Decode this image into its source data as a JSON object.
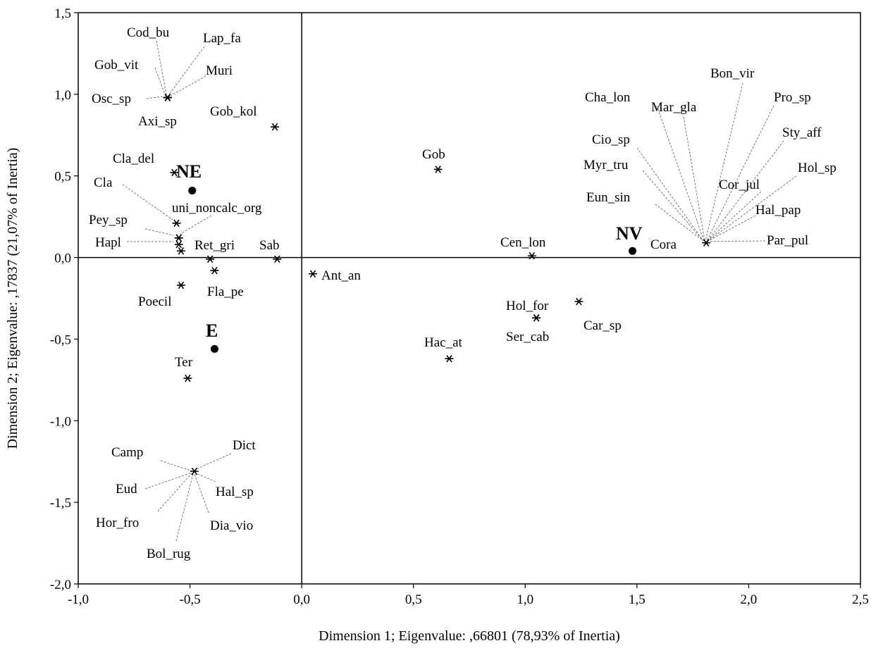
{
  "chart_data": {
    "type": "scatter",
    "title": "",
    "xlabel": "Dimension 1; Eigenvalue: ,66801 (78,93% of Inertia)",
    "ylabel": "Dimension 2; Eigenvalue: ,17837 (21,07% of Inertia)",
    "xlim": [
      -1.0,
      2.5
    ],
    "ylim": [
      -2.0,
      1.5
    ],
    "grid": false,
    "x_ticks": [
      {
        "v": -1.0,
        "label": "-1,0"
      },
      {
        "v": -0.5,
        "label": "-0,5"
      },
      {
        "v": 0.0,
        "label": "0,0"
      },
      {
        "v": 0.5,
        "label": "0,5"
      },
      {
        "v": 1.0,
        "label": "1,0"
      },
      {
        "v": 1.5,
        "label": "1,5"
      },
      {
        "v": 2.0,
        "label": "2,0"
      },
      {
        "v": 2.5,
        "label": "2,5"
      }
    ],
    "y_ticks": [
      {
        "v": 1.5,
        "label": "1,5"
      },
      {
        "v": 1.0,
        "label": "1,0"
      },
      {
        "v": 0.5,
        "label": "0,5"
      },
      {
        "v": 0.0,
        "label": "0,0"
      },
      {
        "v": -0.5,
        "label": "-0,5"
      },
      {
        "v": -1.0,
        "label": "-1,0"
      },
      {
        "v": -1.5,
        "label": "-1,5"
      },
      {
        "v": -2.0,
        "label": "-2,0"
      }
    ],
    "groups": [
      {
        "name": "NE",
        "x": -0.49,
        "y": 0.41
      },
      {
        "name": "NV",
        "x": 1.48,
        "y": 0.04
      },
      {
        "name": "E",
        "x": -0.39,
        "y": -0.56
      }
    ],
    "points": [
      {
        "name": "Cod_bu",
        "x": -0.6,
        "y": 0.98
      },
      {
        "name": "Lap_fa",
        "x": -0.6,
        "y": 0.98
      },
      {
        "name": "Gob_vit",
        "x": -0.6,
        "y": 0.98
      },
      {
        "name": "Muri",
        "x": -0.6,
        "y": 0.98
      },
      {
        "name": "Osc_sp",
        "x": -0.6,
        "y": 0.98
      },
      {
        "name": "Axi_sp",
        "x": -0.6,
        "y": 0.98
      },
      {
        "name": "Gob_kol",
        "x": -0.12,
        "y": 0.8
      },
      {
        "name": "Cla_del",
        "x": -0.57,
        "y": 0.52
      },
      {
        "name": "Cla",
        "x": -0.56,
        "y": 0.21
      },
      {
        "name": "uni_noncalc_org",
        "x": -0.55,
        "y": 0.12
      },
      {
        "name": "Pey_sp",
        "x": -0.55,
        "y": 0.12
      },
      {
        "name": "Hapl",
        "x": -0.55,
        "y": 0.08
      },
      {
        "name": "Ret_gri",
        "x": -0.54,
        "y": 0.04
      },
      {
        "name": "Sab",
        "x": -0.11,
        "y": -0.01
      },
      {
        "name": "Fla_pe",
        "x": -0.41,
        "y": -0.01
      },
      {
        "name": "Fla_pe_2",
        "x": -0.39,
        "y": -0.08
      },
      {
        "name": "Poecil",
        "x": -0.54,
        "y": -0.17
      },
      {
        "name": "Ter",
        "x": -0.51,
        "y": -0.74
      },
      {
        "name": "Ant_an",
        "x": 0.05,
        "y": -0.1
      },
      {
        "name": "Gob",
        "x": 0.61,
        "y": 0.54
      },
      {
        "name": "Cen_lon",
        "x": 1.03,
        "y": 0.01
      },
      {
        "name": "Hol_for",
        "x": 1.05,
        "y": -0.37
      },
      {
        "name": "Ser_cab",
        "x": 1.05,
        "y": -0.37
      },
      {
        "name": "Car_sp",
        "x": 1.24,
        "y": -0.27
      },
      {
        "name": "Hac_at",
        "x": 0.66,
        "y": -0.62
      },
      {
        "name": "Cora",
        "x": 1.81,
        "y": 0.09
      },
      {
        "name": "Dict",
        "x": -0.48,
        "y": -1.31
      }
    ],
    "labels": {
      "Cod_bu": "Cod_bu",
      "Lap_fa": "Lap_fa",
      "Gob_vit": "Gob_vit",
      "Muri": "Muri",
      "Osc_sp": "Osc_sp",
      "Axi_sp": "Axi_sp",
      "Gob_kol": "Gob_kol",
      "Cla_del": "Cla_del",
      "Cla": "Cla",
      "uni_noncalc_org": "uni_noncalc_org",
      "Pey_sp": "Pey_sp",
      "Hapl": "Hapl",
      "Ret_gri": "Ret_gri",
      "Sab": "Sab",
      "Fla_pe": "Fla_pe",
      "Poecil": "Poecil",
      "Ter": "Ter",
      "Ant_an": "Ant_an",
      "Gob": "Gob",
      "Cen_lon": "Cen_lon",
      "Hol_for": "Hol_for",
      "Ser_cab": "Ser_cab",
      "Car_sp": "Car_sp",
      "Hac_at": "Hac_at",
      "Cora": "Cora",
      "Bon_vir": "Bon_vir",
      "Pro_sp": "Pro_sp",
      "Cha_lon": "Cha_lon",
      "Mar_gla": "Mar_gla",
      "Sty_aff": "Sty_aff",
      "Cio_sp": "Cio_sp",
      "Myr_tru": "Myr_tru",
      "Hol_sp": "Hol_sp",
      "Cor_jul": "Cor_jul",
      "Eun_sin": "Eun_sin",
      "Hal_pap": "Hal_pap",
      "Par_pul": "Par_pul",
      "Camp": "Camp",
      "Dict": "Dict",
      "Eud": "Eud",
      "Hal_sp": "Hal_sp",
      "Hor_fro": "Hor_fro",
      "Dia_vio": "Dia_vio",
      "Bol_rug": "Bol_rug"
    }
  }
}
